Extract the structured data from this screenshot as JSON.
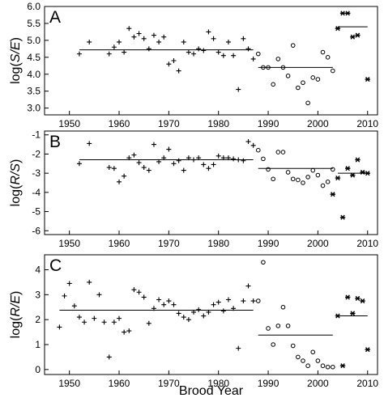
{
  "figure": {
    "xlabel": "Brood Year"
  },
  "chart_data": [
    {
      "type": "scatter",
      "panel_letter": "A",
      "ylabel": "log(S/E)",
      "ylabel_prefix": "log(",
      "ylabel_var": "S/E",
      "ylabel_suffix": ")",
      "xlim": [
        1945,
        2012
      ],
      "ylim": [
        2.8,
        6.0
      ],
      "yticks": [
        3.0,
        3.5,
        4.0,
        4.5,
        5.0,
        5.5,
        6.0
      ],
      "ytick_labels": [
        "3.0",
        "3.5",
        "4.0",
        "4.5",
        "5.0",
        "5.5",
        "6.0"
      ],
      "xticks": [
        1950,
        1960,
        1970,
        1980,
        1990,
        2000,
        2010
      ],
      "xtick_labels": [
        "1950",
        "1960",
        "1970",
        "1980",
        "1990",
        "2000",
        "2010"
      ],
      "series": [
        {
          "marker": "plus",
          "x": [
            1952,
            1954,
            1958,
            1959,
            1960,
            1961,
            1962,
            1963,
            1964,
            1965,
            1966,
            1967,
            1968,
            1969,
            1970,
            1971,
            1972,
            1973,
            1974,
            1975,
            1976,
            1977,
            1978,
            1979,
            1980,
            1981,
            1982,
            1983,
            1984,
            1985,
            1986,
            1987
          ],
          "y": [
            4.6,
            4.95,
            4.6,
            4.8,
            4.95,
            4.65,
            5.35,
            5.1,
            5.2,
            5.05,
            4.75,
            5.15,
            4.95,
            5.1,
            4.3,
            4.4,
            4.1,
            4.95,
            4.65,
            4.6,
            4.75,
            4.7,
            5.25,
            5.05,
            4.65,
            4.55,
            4.95,
            4.55,
            3.55,
            5.05,
            4.75,
            4.45
          ]
        },
        {
          "marker": "circle",
          "x": [
            1988,
            1989,
            1990,
            1991,
            1992,
            1993,
            1994,
            1995,
            1996,
            1997,
            1998,
            1999,
            2000,
            2001,
            2002,
            2003
          ],
          "y": [
            4.6,
            4.2,
            4.2,
            3.7,
            4.45,
            4.2,
            3.95,
            4.85,
            3.6,
            3.75,
            3.15,
            3.9,
            3.85,
            4.65,
            4.5,
            4.1
          ]
        },
        {
          "marker": "asterisk",
          "x": [
            2004,
            2005,
            2006,
            2007,
            2008,
            2010
          ],
          "y": [
            5.35,
            5.8,
            5.8,
            5.1,
            5.15,
            3.85
          ]
        }
      ],
      "means": [
        {
          "x": [
            1952,
            1987
          ],
          "y": 4.72
        },
        {
          "x": [
            1988,
            2003
          ],
          "y": 4.2
        },
        {
          "x": [
            2004,
            2010
          ],
          "y": 5.4
        }
      ]
    },
    {
      "type": "scatter",
      "panel_letter": "B",
      "ylabel": "log(R/S)",
      "ylabel_prefix": "log(",
      "ylabel_var": "R/S",
      "ylabel_suffix": ")",
      "xlim": [
        1945,
        2012
      ],
      "ylim": [
        -6.2,
        -0.8
      ],
      "yticks": [
        -6,
        -5,
        -4,
        -3,
        -2,
        -1
      ],
      "ytick_labels": [
        "-6",
        "-5",
        "-4",
        "-3",
        "-2",
        "-1"
      ],
      "xticks": [
        1950,
        1960,
        1970,
        1980,
        1990,
        2000,
        2010
      ],
      "xtick_labels": [
        "1950",
        "1960",
        "1970",
        "1980",
        "1990",
        "2000",
        "2010"
      ],
      "series": [
        {
          "marker": "plus",
          "x": [
            1952,
            1954,
            1958,
            1959,
            1960,
            1961,
            1962,
            1963,
            1964,
            1965,
            1966,
            1967,
            1968,
            1969,
            1970,
            1971,
            1972,
            1973,
            1974,
            1975,
            1976,
            1977,
            1978,
            1979,
            1980,
            1981,
            1982,
            1983,
            1984,
            1985,
            1986,
            1987
          ],
          "y": [
            -2.5,
            -1.45,
            -2.7,
            -2.75,
            -3.45,
            -3.15,
            -2.2,
            -2.05,
            -2.45,
            -2.7,
            -2.85,
            -1.5,
            -2.4,
            -2.2,
            -1.75,
            -2.5,
            -2.35,
            -2.85,
            -2.2,
            -2.3,
            -2.2,
            -2.55,
            -2.75,
            -2.55,
            -2.1,
            -2.2,
            -2.2,
            -2.25,
            -2.3,
            -2.35,
            -1.35,
            -1.55
          ]
        },
        {
          "marker": "circle",
          "x": [
            1988,
            1989,
            1990,
            1991,
            1992,
            1993,
            1994,
            1995,
            1996,
            1997,
            1998,
            1999,
            2000,
            2001,
            2002,
            2003
          ],
          "y": [
            -1.8,
            -2.25,
            -2.8,
            -3.3,
            -1.9,
            -1.9,
            -2.95,
            -3.3,
            -3.35,
            -3.5,
            -3.2,
            -2.85,
            -3.1,
            -3.65,
            -3.45,
            -2.8
          ]
        },
        {
          "marker": "asterisk",
          "x": [
            2003,
            2004,
            2005,
            2006,
            2007,
            2008,
            2009,
            2010
          ],
          "y": [
            -4.1,
            -3.25,
            -5.3,
            -2.75,
            -3.1,
            -2.3,
            -2.95,
            -3.0
          ]
        }
      ],
      "means": [
        {
          "x": [
            1952,
            1987
          ],
          "y": -2.3
        },
        {
          "x": [
            1988,
            2003
          ],
          "y": -2.75
        },
        {
          "x": [
            2004,
            2010
          ],
          "y": -3.0
        }
      ]
    },
    {
      "type": "scatter",
      "panel_letter": "C",
      "ylabel": "log(R/E)",
      "ylabel_prefix": "log(",
      "ylabel_var": "R/E",
      "ylabel_suffix": ")",
      "xlim": [
        1945,
        2012
      ],
      "ylim": [
        -0.2,
        4.6
      ],
      "yticks": [
        0,
        1,
        2,
        3,
        4
      ],
      "ytick_labels": [
        "0",
        "1",
        "2",
        "3",
        "4"
      ],
      "xticks": [
        1950,
        1960,
        1970,
        1980,
        1990,
        2000,
        2010
      ],
      "xtick_labels": [
        "1950",
        "1960",
        "1970",
        "1980",
        "1990",
        "2000",
        "2010"
      ],
      "series": [
        {
          "marker": "plus",
          "x": [
            1948,
            1949,
            1950,
            1951,
            1952,
            1953,
            1954,
            1955,
            1956,
            1957,
            1958,
            1959,
            1960,
            1961,
            1962,
            1963,
            1964,
            1965,
            1966,
            1967,
            1968,
            1969,
            1970,
            1971,
            1972,
            1973,
            1974,
            1975,
            1976,
            1977,
            1978,
            1979,
            1980,
            1981,
            1982,
            1983,
            1984,
            1985,
            1986,
            1987
          ],
          "y": [
            1.7,
            2.95,
            3.45,
            2.55,
            2.1,
            1.9,
            3.5,
            2.05,
            3.0,
            1.9,
            0.5,
            1.9,
            2.05,
            1.5,
            1.55,
            3.2,
            3.1,
            2.9,
            1.85,
            2.45,
            2.8,
            2.6,
            2.75,
            2.6,
            2.25,
            2.1,
            2.0,
            2.3,
            2.4,
            2.15,
            2.3,
            2.6,
            2.7,
            2.35,
            2.8,
            2.45,
            0.85,
            2.75,
            3.35,
            2.75
          ]
        },
        {
          "marker": "circle",
          "x": [
            1988,
            1989,
            1990,
            1991,
            1992,
            1993,
            1994,
            1995,
            1996,
            1997,
            1998,
            1999,
            2000,
            2001,
            2002,
            2003
          ],
          "y": [
            2.75,
            4.3,
            1.65,
            1.0,
            1.75,
            2.5,
            1.75,
            0.95,
            0.5,
            0.35,
            0.15,
            0.7,
            0.35,
            0.15,
            0.1,
            0.1
          ]
        },
        {
          "marker": "asterisk",
          "x": [
            2004,
            2005,
            2006,
            2007,
            2008,
            2009,
            2010
          ],
          "y": [
            2.15,
            0.15,
            2.9,
            2.25,
            2.85,
            2.75,
            0.8
          ]
        }
      ],
      "means": [
        {
          "x": [
            1948,
            1987
          ],
          "y": 2.38
        },
        {
          "x": [
            1988,
            2003
          ],
          "y": 1.38
        },
        {
          "x": [
            2004,
            2010
          ],
          "y": 2.15
        }
      ]
    }
  ]
}
